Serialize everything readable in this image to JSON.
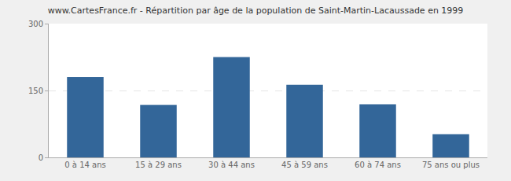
{
  "chart_data": {
    "type": "bar",
    "title": "www.CartesFrance.fr - Répartition par âge de la population de Saint-Martin-Lacaussade en 1999",
    "categories": [
      "0 à 14 ans",
      "15 à 29 ans",
      "30 à 44 ans",
      "45 à 59 ans",
      "60 à 74 ans",
      "75 ans ou plus"
    ],
    "values": [
      180,
      118,
      225,
      163,
      119,
      52
    ],
    "color": "#336699",
    "ylim": [
      0,
      300
    ],
    "yticks": [
      0,
      150,
      300
    ],
    "grid": true
  }
}
